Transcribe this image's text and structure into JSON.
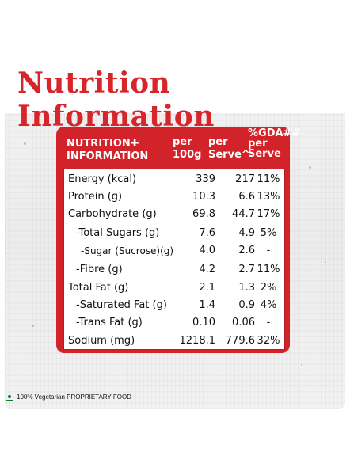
{
  "title": "Nutrition Information",
  "table": {
    "header": {
      "nutrition_info": "NUTRITION✚ INFORMATION",
      "per_100g": "per 100g",
      "per_serve": "per Serve^",
      "gda": "%GDA## per Serve"
    },
    "rows": [
      {
        "name": "Energy (kcal)",
        "per_100g": "339",
        "per_serve": "217",
        "gda": "11%"
      },
      {
        "name": "Protein (g)",
        "per_100g": "10.3",
        "per_serve": "6.6",
        "gda": "13%"
      },
      {
        "name": "Carbohydrate (g)",
        "per_100g": "69.8",
        "per_serve": "44.7",
        "gda": "17%"
      },
      {
        "name": "-Total Sugars (g)",
        "per_100g": "7.6",
        "per_serve": "4.9",
        "gda": "5%"
      },
      {
        "name": "-Sugar (Sucrose)(g)",
        "per_100g": "4.0",
        "per_serve": "2.6",
        "gda": "-"
      },
      {
        "name": "-Fibre (g)",
        "per_100g": "4.2",
        "per_serve": "2.7",
        "gda": "11%"
      },
      {
        "name": "Total Fat (g)",
        "per_100g": "2.1",
        "per_serve": "1.3",
        "gda": "2%"
      },
      {
        "name": "-Saturated Fat (g)",
        "per_100g": "1.4",
        "per_serve": "0.9",
        "gda": "4%"
      },
      {
        "name": "-Trans Fat (g)",
        "per_100g": "0.10",
        "per_serve": "0.06",
        "gda": "-"
      },
      {
        "name": "Sodium (mg)",
        "per_100g": "1218.1",
        "per_serve": "779.6",
        "gda": "32%"
      }
    ]
  },
  "footer": {
    "text": "100% Vegetarian PROPRIETARY FOOD"
  },
  "colors": {
    "brand_red": "#d2232a",
    "veg_green": "#157a2a"
  }
}
